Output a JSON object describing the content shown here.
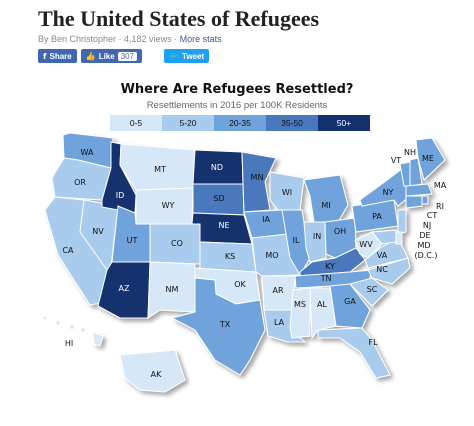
{
  "article": {
    "title": "The United States of Refugees",
    "byline": "By Ben Christopher · 4,182 views ·",
    "stats_link": "More stats"
  },
  "social": {
    "share_label": "Share",
    "like_label": "Like",
    "like_count": "307",
    "tweet_label": "Tweet"
  },
  "map": {
    "title": "Where Are Refugees Resettled?",
    "subtitle": "Resettlements in 2016 per 100K Residents",
    "legend": [
      {
        "label": "0-5",
        "color": "#d6e7f7"
      },
      {
        "label": "5-20",
        "color": "#a9cbed"
      },
      {
        "label": "20-35",
        "color": "#6fa3dc"
      },
      {
        "label": "35-50",
        "color": "#4a78bd"
      },
      {
        "label": "50+",
        "color": "#14306e"
      }
    ],
    "states": {
      "WA": 3,
      "OR": 2,
      "CA": 2,
      "NV": 2,
      "ID": 5,
      "MT": 1,
      "WY": 1,
      "UT": 3,
      "CO": 2,
      "AZ": 5,
      "NM": 1,
      "ND": 5,
      "SD": 4,
      "NE": 5,
      "KS": 2,
      "OK": 1,
      "TX": 3,
      "MN": 4,
      "IA": 3,
      "MO": 2,
      "AR": 1,
      "LA": 2,
      "WI": 2,
      "IL": 3,
      "MI": 3,
      "IN": 2,
      "OH": 3,
      "KY": 4,
      "TN": 3,
      "MS": 1,
      "AL": 1,
      "GA": 3,
      "FL": 2,
      "SC": 2,
      "NC": 2,
      "VA": 2,
      "WV": 1,
      "PA": 3,
      "NY": 3,
      "VT": 3,
      "NH": 3,
      "ME": 3,
      "MA": 3,
      "RI": 3,
      "CT": 3,
      "NJ": 2,
      "DE": 1,
      "MD": 2,
      "HI": 1,
      "AK": 1
    },
    "label_extra": {
      "dc": "MD\n(D.C.)"
    }
  }
}
